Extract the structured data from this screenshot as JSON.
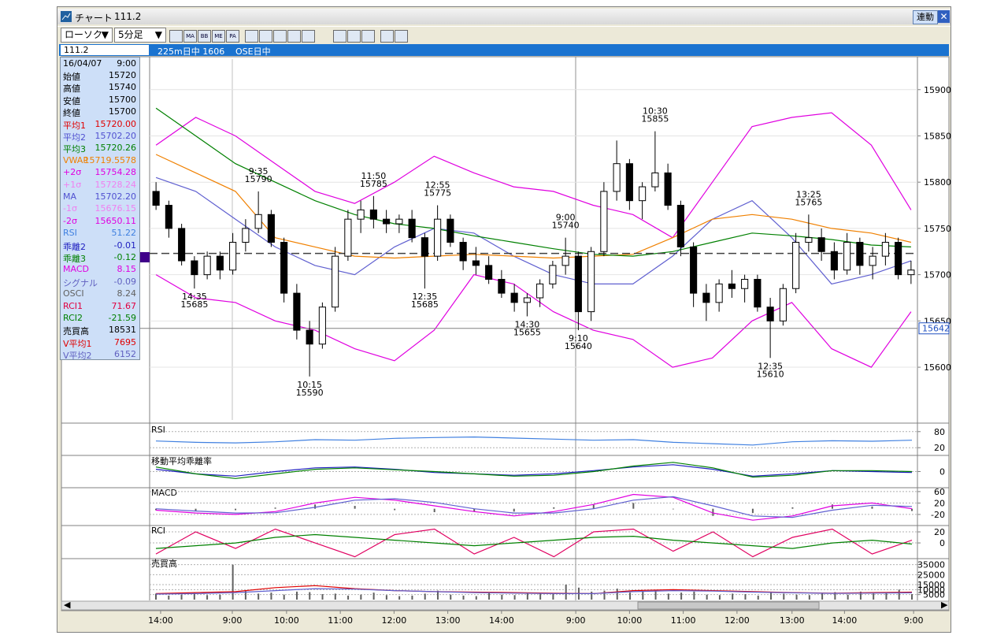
{
  "window": {
    "title": "チャート",
    "code": "111.2",
    "link_button": "連動"
  },
  "toolbar": {
    "chart_style": "ローソク",
    "interval": "5分足",
    "indicator_buttons": [
      "MA",
      "BB",
      "ME",
      "PA"
    ]
  },
  "header": {
    "code": "111.2",
    "name": "225m日中 1606",
    "session": "OSE日中"
  },
  "info_panel": {
    "date": "16/04/07",
    "time": "9:00",
    "rows": [
      {
        "label": "始値",
        "value": "15720",
        "color": "#000000"
      },
      {
        "label": "高値",
        "value": "15740",
        "color": "#000000"
      },
      {
        "label": "安値",
        "value": "15700",
        "color": "#000000"
      },
      {
        "label": "終値",
        "value": "15700",
        "color": "#000000"
      },
      {
        "label": "平均1",
        "value": "15720.00",
        "color": "#e00000"
      },
      {
        "label": "平均2",
        "value": "15702.20",
        "color": "#5050d0"
      },
      {
        "label": "平均3",
        "value": "15720.26",
        "color": "#008000"
      },
      {
        "label": "VWAP",
        "value": "15719.5578",
        "color": "#f08000"
      },
      {
        "label": "+2σ",
        "value": "15754.28",
        "color": "#e000e0"
      },
      {
        "label": "+1σ",
        "value": "15728.24",
        "color": "#f080f0"
      },
      {
        "label": "MA",
        "value": "15702.20",
        "color": "#5050d0"
      },
      {
        "label": "-1σ",
        "value": "15676.15",
        "color": "#f080f0"
      },
      {
        "label": "-2σ",
        "value": "15650.11",
        "color": "#e000e0"
      },
      {
        "label": "RSI",
        "value": "51.22",
        "color": "#4080e0"
      },
      {
        "label": "乖離2",
        "value": "-0.01",
        "color": "#2020c0"
      },
      {
        "label": "乖離3",
        "value": "-0.12",
        "color": "#008000"
      },
      {
        "label": "MACD",
        "value": "8.15",
        "color": "#e000e0"
      },
      {
        "label": "シグナル",
        "value": "-0.09",
        "color": "#6060c0"
      },
      {
        "label": "OSCI",
        "value": "8.24",
        "color": "#606060"
      },
      {
        "label": "RCI1",
        "value": "71.67",
        "color": "#e00040"
      },
      {
        "label": "RCI2",
        "value": "-21.59",
        "color": "#008000"
      },
      {
        "label": "売買高",
        "value": "18531",
        "color": "#000000"
      },
      {
        "label": "V平均1",
        "value": "7695",
        "color": "#e00000"
      },
      {
        "label": "V平均2",
        "value": "6152",
        "color": "#6060c0"
      }
    ]
  },
  "chart_data": [
    {
      "type": "candlestick",
      "ylim": [
        15543,
        15933
      ],
      "yticks": [
        15600,
        15650,
        15700,
        15750,
        15800,
        15850,
        15900
      ],
      "xlim": [
        -0.5,
        59.5
      ],
      "xticks": [
        {
          "value": 0.36,
          "label": "14:00"
        },
        {
          "value": 5.96,
          "label": "9:00"
        },
        {
          "value": 10.2,
          "label": "10:00"
        },
        {
          "value": 14.4,
          "label": "11:00"
        },
        {
          "value": 18.6,
          "label": "12:00"
        },
        {
          "value": 22.8,
          "label": "13:00"
        },
        {
          "value": 27.0,
          "label": "14:00"
        },
        {
          "value": 32.8,
          "label": "9:00"
        },
        {
          "value": 37.0,
          "label": "10:00"
        },
        {
          "value": 41.2,
          "label": "11:00"
        },
        {
          "value": 45.4,
          "label": "12:00"
        },
        {
          "value": 49.7,
          "label": "13:00"
        },
        {
          "value": 53.8,
          "label": "14:00"
        },
        {
          "value": 59.2,
          "label": "9:00"
        }
      ],
      "up_color": "#ffffff",
      "down_color": "#000000",
      "ohlc": [
        [
          15790,
          15800,
          15770,
          15775
        ],
        [
          15775,
          15780,
          15740,
          15750
        ],
        [
          15750,
          15755,
          15710,
          15715
        ],
        [
          15715,
          15720,
          15685,
          15700
        ],
        [
          15700,
          15725,
          15695,
          15720
        ],
        [
          15720,
          15725,
          15695,
          15705
        ],
        [
          15705,
          15745,
          15700,
          15735
        ],
        [
          15735,
          15760,
          15725,
          15750
        ],
        [
          15750,
          15790,
          15745,
          15765
        ],
        [
          15765,
          15770,
          15730,
          15735
        ],
        [
          15735,
          15740,
          15670,
          15680
        ],
        [
          15680,
          15690,
          15630,
          15640
        ],
        [
          15640,
          15650,
          15590,
          15625
        ],
        [
          15625,
          15670,
          15620,
          15665
        ],
        [
          15665,
          15730,
          15660,
          15720
        ],
        [
          15720,
          15770,
          15715,
          15760
        ],
        [
          15760,
          15780,
          15745,
          15770
        ],
        [
          15770,
          15785,
          15750,
          15760
        ],
        [
          15760,
          15770,
          15745,
          15755
        ],
        [
          15755,
          15765,
          15745,
          15760
        ],
        [
          15760,
          15770,
          15735,
          15740
        ],
        [
          15740,
          15745,
          15685,
          15720
        ],
        [
          15720,
          15775,
          15715,
          15760
        ],
        [
          15760,
          15765,
          15730,
          15735
        ],
        [
          15735,
          15740,
          15705,
          15715
        ],
        [
          15715,
          15730,
          15700,
          15710
        ],
        [
          15710,
          15720,
          15690,
          15695
        ],
        [
          15695,
          15705,
          15675,
          15680
        ],
        [
          15680,
          15690,
          15660,
          15670
        ],
        [
          15670,
          15680,
          15655,
          15675
        ],
        [
          15675,
          15695,
          15665,
          15690
        ],
        [
          15690,
          15715,
          15685,
          15710
        ],
        [
          15710,
          15740,
          15700,
          15720
        ],
        [
          15720,
          15725,
          15640,
          15660
        ],
        [
          15660,
          15730,
          15650,
          15725
        ],
        [
          15725,
          15800,
          15720,
          15790
        ],
        [
          15790,
          15845,
          15780,
          15820
        ],
        [
          15820,
          15825,
          15770,
          15780
        ],
        [
          15780,
          15800,
          15760,
          15795
        ],
        [
          15795,
          15855,
          15790,
          15810
        ],
        [
          15810,
          15820,
          15770,
          15775
        ],
        [
          15775,
          15780,
          15720,
          15730
        ],
        [
          15730,
          15735,
          15665,
          15680
        ],
        [
          15680,
          15690,
          15650,
          15670
        ],
        [
          15670,
          15695,
          15660,
          15690
        ],
        [
          15690,
          15705,
          15675,
          15685
        ],
        [
          15685,
          15700,
          15670,
          15695
        ],
        [
          15695,
          15700,
          15660,
          15665
        ],
        [
          15665,
          15675,
          15610,
          15650
        ],
        [
          15650,
          15690,
          15645,
          15685
        ],
        [
          15685,
          15745,
          15680,
          15735
        ],
        [
          15735,
          15765,
          15725,
          15740
        ],
        [
          15740,
          15750,
          15715,
          15725
        ],
        [
          15725,
          15735,
          15695,
          15705
        ],
        [
          15705,
          15745,
          15700,
          15735
        ],
        [
          15735,
          15740,
          15700,
          15710
        ],
        [
          15710,
          15730,
          15695,
          15720
        ],
        [
          15720,
          15745,
          15710,
          15735
        ],
        [
          15735,
          15740,
          15695,
          15700
        ],
        [
          15700,
          15715,
          15690,
          15705
        ]
      ],
      "lines": [
        {
          "color": "#e000e0",
          "values": [
            15840,
            15870,
            15850,
            15820,
            15790,
            15777,
            15800,
            15828,
            15810,
            15795,
            15790,
            15775,
            15765,
            15740,
            15800,
            15860,
            15870,
            15875,
            15840,
            15770
          ]
        },
        {
          "color": "#e000e0",
          "values": [
            15700,
            15675,
            15670,
            15650,
            15640,
            15620,
            15607,
            15640,
            15700,
            15690,
            15660,
            15640,
            15630,
            15600,
            15610,
            15650,
            15670,
            15620,
            15600,
            15660
          ]
        },
        {
          "color": "#6060d0",
          "values": [
            15805,
            15790,
            15760,
            15730,
            15710,
            15700,
            15730,
            15750,
            15745,
            15720,
            15700,
            15690,
            15690,
            15720,
            15760,
            15780,
            15740,
            15690,
            15700,
            15715
          ]
        },
        {
          "color": "#f08000",
          "values": [
            15830,
            15810,
            15790,
            15740,
            15730,
            15720,
            15718,
            15720,
            15722,
            15720,
            15718,
            15720,
            15722,
            15740,
            15760,
            15765,
            15760,
            15750,
            15745,
            15735
          ]
        },
        {
          "color": "#008000",
          "values": [
            15880,
            15850,
            15820,
            15800,
            15780,
            15765,
            15755,
            15750,
            15742,
            15735,
            15728,
            15722,
            15720,
            15725,
            15735,
            15745,
            15742,
            15738,
            15732,
            15730
          ]
        }
      ],
      "annotations": [
        {
          "time": "14:35",
          "value": 15685
        },
        {
          "time": "9:35",
          "value": 15790
        },
        {
          "time": "10:15",
          "value": 15590
        },
        {
          "time": "11:50",
          "value": 15785
        },
        {
          "time": "12:35",
          "value": 15685
        },
        {
          "time": "12:55",
          "value": 15775
        },
        {
          "time": "14:30",
          "value": 15655
        },
        {
          "time": "9:00",
          "value": 15740
        },
        {
          "time": "9:10",
          "value": 15640
        },
        {
          "time": "10:30",
          "value": 15855
        },
        {
          "time": "12:35",
          "value": 15610
        },
        {
          "time": "13:25",
          "value": 15765
        }
      ],
      "reference_line": 15723,
      "last_price": 15642
    },
    {
      "type": "line",
      "title": "RSI",
      "ylim": [
        0,
        100
      ],
      "yticks": [
        80,
        20
      ],
      "series": [
        {
          "color": "#4080e0",
          "values": [
            45,
            40,
            38,
            42,
            50,
            48,
            55,
            58,
            60,
            56,
            52,
            48,
            50,
            40,
            35,
            30,
            42,
            46,
            44,
            48
          ]
        }
      ]
    },
    {
      "type": "line",
      "title": "移動平均乖離率",
      "ylim": [
        -0.3,
        0.3
      ],
      "yticks": [
        0
      ],
      "series": [
        {
          "color": "#2020c0",
          "values": [
            0.05,
            -0.05,
            -0.1,
            0.0,
            0.08,
            0.1,
            0.05,
            -0.02,
            -0.05,
            -0.08,
            -0.05,
            0.02,
            0.1,
            0.15,
            0.05,
            -0.1,
            -0.05,
            0.02,
            0.0,
            -0.02
          ]
        },
        {
          "color": "#008000",
          "values": [
            0.1,
            -0.05,
            -0.15,
            -0.05,
            0.05,
            0.08,
            0.04,
            0.0,
            -0.05,
            -0.1,
            -0.08,
            0.0,
            0.12,
            0.2,
            0.08,
            -0.12,
            -0.08,
            0.02,
            0.02,
            0.0
          ]
        }
      ]
    },
    {
      "type": "line",
      "title": "MACD",
      "ylim": [
        -56,
        68
      ],
      "yticks": [
        60,
        20,
        -20
      ],
      "bars": {
        "color": "#606060",
        "values": [
          -5,
          -7,
          -5,
          4,
          15,
          10,
          -5,
          -12,
          -10,
          -10,
          5,
          15,
          20,
          -2,
          -25,
          -15,
          5,
          15,
          8,
          -8
        ]
      },
      "series": [
        {
          "color": "#e000e0",
          "values": [
            -5,
            -15,
            -20,
            -10,
            20,
            40,
            30,
            10,
            -10,
            -25,
            -10,
            15,
            50,
            40,
            -15,
            -40,
            -25,
            10,
            20,
            0
          ]
        },
        {
          "color": "#6060d0",
          "values": [
            0,
            -8,
            -15,
            -14,
            5,
            30,
            35,
            22,
            0,
            -15,
            -15,
            0,
            30,
            42,
            10,
            -25,
            -30,
            -5,
            12,
            8
          ]
        }
      ]
    },
    {
      "type": "line",
      "title": "RCI",
      "ylim": [
        -27,
        28.6
      ],
      "yticks": [
        20,
        0
      ],
      "series": [
        {
          "color": "#e00060",
          "values": [
            -20,
            20,
            -10,
            25,
            0,
            -25,
            15,
            25,
            -20,
            10,
            -25,
            20,
            25,
            -15,
            20,
            -25,
            10,
            25,
            -20,
            5
          ]
        },
        {
          "color": "#008000",
          "values": [
            -10,
            -5,
            0,
            10,
            15,
            10,
            5,
            0,
            -5,
            0,
            5,
            10,
            12,
            5,
            0,
            -5,
            -10,
            0,
            5,
            -2
          ]
        }
      ]
    },
    {
      "type": "bar",
      "title": "売買高",
      "ylim": [
        0,
        39470
      ],
      "yticks": [
        35000,
        25000,
        15000,
        10000,
        5000
      ],
      "bars": {
        "color": "#606060",
        "values": [
          6000,
          4000,
          5000,
          7000,
          4500,
          5000,
          35000,
          9000,
          6000,
          7000,
          5000,
          8000,
          7500,
          5500,
          6000,
          4000,
          5000,
          7000,
          4500,
          3500,
          4000,
          6000,
          9000,
          5000,
          4000,
          3500,
          6500,
          5000,
          4500,
          6000,
          7000,
          6500,
          15000,
          12000,
          8000,
          9000,
          11000,
          7000,
          8000,
          9500,
          6000,
          7000,
          8000,
          5000,
          4500,
          6000,
          5500,
          4000,
          7000,
          6000,
          5000,
          4500,
          6000,
          7500,
          5000,
          8000,
          6000,
          7000,
          10000,
          5500
        ]
      },
      "series": [
        {
          "color": "#e00000",
          "values": [
            6000,
            7000,
            8000,
            12000,
            14000,
            11000,
            9000,
            8000,
            7500,
            7000,
            6500,
            6000,
            9000,
            10000,
            9000,
            8000,
            7000,
            6500,
            7000,
            7500
          ]
        },
        {
          "color": "#6060d0",
          "values": [
            5500,
            6000,
            7000,
            9000,
            11000,
            10500,
            9000,
            8000,
            7000,
            6500,
            6000,
            6000,
            8000,
            9000,
            8500,
            7500,
            6800,
            6200,
            6500,
            6800
          ]
        }
      ]
    }
  ]
}
